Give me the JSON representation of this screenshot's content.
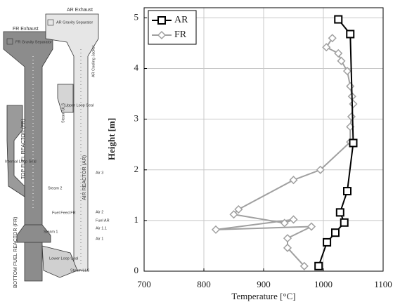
{
  "diagram": {
    "labels": [
      "AR Exhaust",
      "FR Exhaust",
      "FR Gravity Separator",
      "AR Gravity Separator",
      "AR Cooling Jacket",
      "Steam ULS",
      "Upper Loop Seal",
      "Internal Loop Seal",
      "TOP FUEL REACTOR (FR)",
      "AIR REACTOR (AR)",
      "Steam 2",
      "Air 3",
      "Air 2",
      "Fuel Feed FR",
      "Fuel AR",
      "Air 1.1",
      "Steam 1",
      "Air 1",
      "BOTTOM FUEL REACTOR (FR)",
      "Lower Loop Seal",
      "Steam LLS"
    ]
  },
  "chart_data": {
    "type": "line",
    "x_label": "Temperature [°C]",
    "y_label": "Height [m]",
    "xlim": [
      700,
      1100
    ],
    "xticks": [
      700,
      800,
      900,
      1000,
      1100
    ],
    "ylim": [
      0,
      5.2
    ],
    "yticks": [
      0,
      1,
      2,
      3,
      4,
      5
    ],
    "grid": true,
    "legend": "upper-left",
    "series": [
      {
        "name": "AR",
        "color": "#000000",
        "marker": "square",
        "x": [
          992,
          1006,
          1020,
          1035,
          1028,
          1040,
          1050,
          1045,
          1025
        ],
        "values": [
          0.1,
          0.57,
          0.76,
          0.96,
          1.16,
          1.58,
          2.53,
          4.68,
          4.97
        ]
      },
      {
        "name": "FR",
        "color": "#a0a0a0",
        "marker": "diamond",
        "x": [
          968,
          940,
          940,
          980,
          820,
          950,
          935,
          850,
          858,
          950,
          995,
          1045,
          1045,
          1047,
          1050,
          1048,
          1045,
          1040,
          1030,
          1025,
          1005,
          1015
        ],
        "values": [
          0.1,
          0.46,
          0.65,
          0.88,
          0.82,
          1.02,
          0.95,
          1.12,
          1.22,
          1.8,
          2.0,
          2.55,
          2.85,
          3.05,
          3.3,
          3.45,
          3.65,
          3.95,
          4.15,
          4.3,
          4.42,
          4.6
        ]
      }
    ]
  }
}
